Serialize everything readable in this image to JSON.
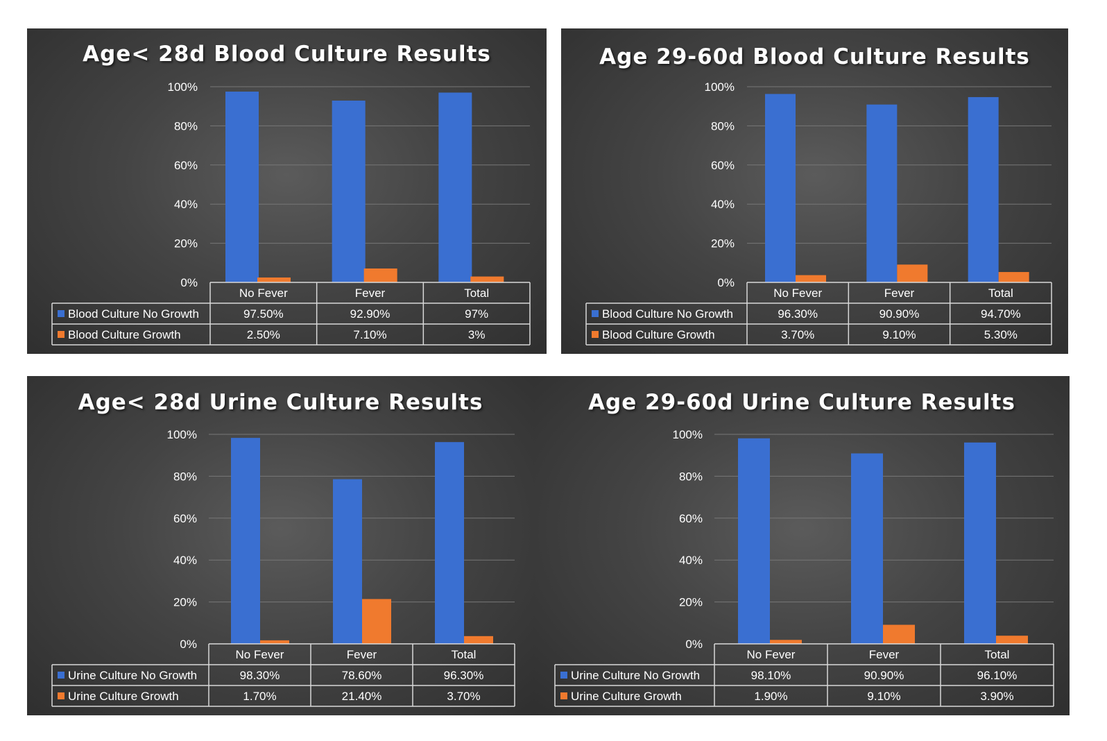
{
  "colors": {
    "no_growth": "#3a6fd1",
    "growth": "#f07a2e",
    "grid": "#777777",
    "table_line": "#d9d9d9"
  },
  "chart_data": [
    {
      "type": "bar",
      "title": "Age< 28d Blood Culture Results",
      "categories": [
        "No Fever",
        "Fever",
        "Total"
      ],
      "ylim": [
        0,
        100
      ],
      "yticks": [
        "0%",
        "20%",
        "40%",
        "60%",
        "80%",
        "100%"
      ],
      "grid": true,
      "legend": "data-table",
      "series": [
        {
          "name": "Blood Culture No Growth",
          "values": [
            97.5,
            92.9,
            97
          ],
          "labels": [
            "97.50%",
            "92.90%",
            "97%"
          ]
        },
        {
          "name": "Blood Culture Growth",
          "values": [
            2.5,
            7.1,
            3
          ],
          "labels": [
            "2.50%",
            "7.10%",
            "3%"
          ]
        }
      ]
    },
    {
      "type": "bar",
      "title": "Age 29-60d Blood Culture Results",
      "categories": [
        "No Fever",
        "Fever",
        "Total"
      ],
      "ylim": [
        0,
        100
      ],
      "yticks": [
        "0%",
        "20%",
        "40%",
        "60%",
        "80%",
        "100%"
      ],
      "grid": true,
      "legend": "data-table",
      "series": [
        {
          "name": "Blood Culture  No Growth",
          "values": [
            96.3,
            90.9,
            94.7
          ],
          "labels": [
            "96.30%",
            "90.90%",
            "94.70%"
          ]
        },
        {
          "name": "Blood Culture  Growth",
          "values": [
            3.7,
            9.1,
            5.3
          ],
          "labels": [
            "3.70%",
            "9.10%",
            "5.30%"
          ]
        }
      ]
    },
    {
      "type": "bar",
      "title": "Age< 28d Urine Culture Results",
      "categories": [
        "No Fever",
        "Fever",
        "Total"
      ],
      "ylim": [
        0,
        100
      ],
      "yticks": [
        "0%",
        "20%",
        "40%",
        "60%",
        "80%",
        "100%"
      ],
      "grid": true,
      "legend": "data-table",
      "series": [
        {
          "name": "Urine Culture No Growth",
          "values": [
            98.3,
            78.6,
            96.3
          ],
          "labels": [
            "98.30%",
            "78.60%",
            "96.30%"
          ]
        },
        {
          "name": "Urine Culture Growth",
          "values": [
            1.7,
            21.4,
            3.7
          ],
          "labels": [
            "1.70%",
            "21.40%",
            "3.70%"
          ]
        }
      ]
    },
    {
      "type": "bar",
      "title": "Age 29-60d Urine Culture Results",
      "categories": [
        "No Fever",
        "Fever",
        "Total"
      ],
      "ylim": [
        0,
        100
      ],
      "yticks": [
        "0%",
        "20%",
        "40%",
        "60%",
        "80%",
        "100%"
      ],
      "grid": true,
      "legend": "data-table",
      "series": [
        {
          "name": "Urine Culture  No Growth",
          "values": [
            98.1,
            90.9,
            96.1
          ],
          "labels": [
            "98.10%",
            "90.90%",
            "96.10%"
          ]
        },
        {
          "name": "Urine Culture  Growth",
          "values": [
            1.9,
            9.1,
            3.9
          ],
          "labels": [
            "1.90%",
            "9.10%",
            "3.90%"
          ]
        }
      ]
    }
  ]
}
